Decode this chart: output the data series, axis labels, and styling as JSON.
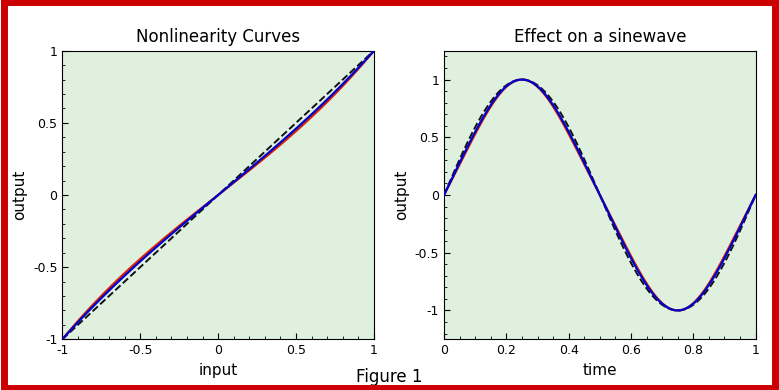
{
  "title1": "Nonlinearity Curves",
  "title2": "Effect on a sinewave",
  "xlabel1": "input",
  "ylabel1": "output",
  "xlabel2": "time",
  "ylabel2": "output",
  "fig_label": "Figure 1",
  "xlim1": [
    -1,
    1
  ],
  "ylim1": [
    -1,
    1
  ],
  "xlim2": [
    0,
    1
  ],
  "ylim2": [
    -1.25,
    1.25
  ],
  "bg_color": "#dff0df",
  "outer_border_color": "#cc0000",
  "outer_border_lw": 5,
  "line_colors": {
    "red": "#dd2200",
    "blue": "#0000cc",
    "black_dashed": "#111111"
  },
  "line_lw": 1.6,
  "dashed_lw": 1.4,
  "expand_coeff": 0.18,
  "compress_coeff": -0.12,
  "clip_level": 1.0,
  "figsize": [
    7.79,
    3.9
  ],
  "dpi": 100
}
